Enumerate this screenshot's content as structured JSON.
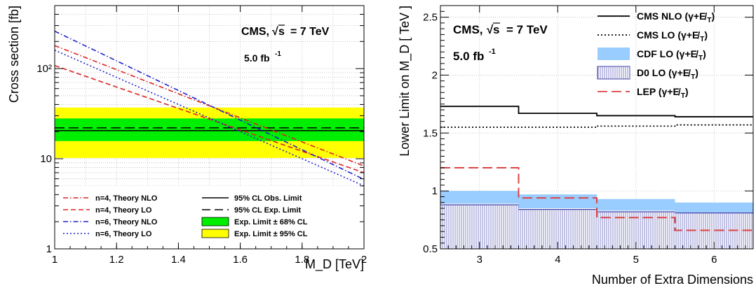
{
  "chart_data": [
    {
      "type": "line",
      "title": "",
      "xlabel": "M_D [TeV]",
      "ylabel": "Cross section [fb]",
      "xlim": [
        1.0,
        2.0
      ],
      "ylim": [
        1,
        500
      ],
      "yscale": "log",
      "x_ticks": [
        1,
        1.2,
        1.4,
        1.6,
        1.8,
        2
      ],
      "x_tick_labels": [
        "1",
        "1.2",
        "1.4",
        "1.6",
        "1.8",
        "2"
      ],
      "y_ticks": [
        1,
        10,
        100
      ],
      "y_tick_labels": [
        "1",
        "10",
        "10²"
      ],
      "grid": true,
      "legend_position": "bottom",
      "annotations": [
        "CMS, √s = 7 TeV",
        "5.0 fb⁻¹"
      ],
      "annotation_parts": {
        "cms": "CMS,",
        "sqrt": "√",
        "s": "s",
        "energy": "= 7 TeV",
        "lumi": "5.0 fb",
        "lumi_exp": "-1"
      },
      "bands": [
        {
          "name": "Exp. Limit ± 95% CL",
          "color": "#ffff00",
          "low": 10.2,
          "high": 37
        },
        {
          "name": "Exp. Limit ± 68% CL",
          "color": "#00ee00",
          "low": 15.7,
          "high": 28
        }
      ],
      "hlines": [
        {
          "name": "95% CL Obs. Limit",
          "value": 20.5,
          "style": "solid",
          "color": "#000000"
        },
        {
          "name": "95% CL Exp. Limit",
          "value": 22.0,
          "style": "dashed",
          "color": "#000000"
        }
      ],
      "series": [
        {
          "name": "n=4, Theory NLO",
          "color": "#dd2222",
          "style": "dashdot",
          "x": [
            1.0,
            2.0
          ],
          "y": [
            180,
            8.3
          ]
        },
        {
          "name": "n=4, Theory LO",
          "color": "#dd2222",
          "style": "dashed",
          "x": [
            1.0,
            2.0
          ],
          "y": [
            108,
            7.0
          ]
        },
        {
          "name": "n=6, Theory NLO",
          "color": "#2222cc",
          "style": "dashdot",
          "x": [
            1.0,
            2.0
          ],
          "y": [
            260,
            5.9
          ]
        },
        {
          "name": "n=6, Theory LO",
          "color": "#2222cc",
          "style": "dotted",
          "x": [
            1.0,
            2.0
          ],
          "y": [
            160,
            5.0
          ]
        }
      ],
      "legend": [
        {
          "label": "n=4, Theory NLO",
          "kind": "line",
          "color": "#dd2222",
          "style": "dashdot"
        },
        {
          "label": "n=4, Theory LO",
          "kind": "line",
          "color": "#dd2222",
          "style": "dashed"
        },
        {
          "label": "n=6, Theory NLO",
          "kind": "line",
          "color": "#2222cc",
          "style": "dashdot"
        },
        {
          "label": "n=6, Theory LO",
          "kind": "line",
          "color": "#2222cc",
          "style": "dotted"
        },
        {
          "label": "95% CL Obs. Limit",
          "kind": "line",
          "color": "#000000",
          "style": "solid"
        },
        {
          "label": "95% CL Exp. Limit",
          "kind": "line",
          "color": "#000000",
          "style": "longdash"
        },
        {
          "label": "Exp. Limit ± 68% CL",
          "kind": "box",
          "color": "#00ee00"
        },
        {
          "label": "Exp. Limit ± 95% CL",
          "kind": "box",
          "color": "#ffff00"
        }
      ]
    },
    {
      "type": "line",
      "title": "",
      "xlabel": "Number of Extra Dimensions",
      "ylabel": "Lower Limit on M_D [ TeV ]",
      "xlim": [
        2.5,
        6.5
      ],
      "ylim": [
        0.5,
        2.6
      ],
      "x_ticks": [
        3,
        4,
        5,
        6
      ],
      "x_tick_labels": [
        "3",
        "4",
        "5",
        "6"
      ],
      "y_ticks": [
        0.5,
        1,
        1.5,
        2,
        2.5
      ],
      "y_tick_labels": [
        "0.5",
        "1",
        "1.5",
        "2",
        "2.5"
      ],
      "grid": true,
      "legend_position": "top-right",
      "annotations": [
        "CMS, √s = 7 TeV",
        "5.0 fb⁻¹"
      ],
      "annotation_parts": {
        "cms": "CMS,",
        "sqrt": "√",
        "s": "s",
        "energy": "= 7 TeV",
        "lumi": "5.0 fb",
        "lumi_exp": "-1"
      },
      "step_series": [
        {
          "name": "CMS NLO (γ+E̸T)",
          "label_main": "CMS NLO (γ+E̸",
          "color": "#000000",
          "style": "solid",
          "edges": [
            2.5,
            3.5,
            4.5,
            5.5,
            6.5
          ],
          "values": [
            1.73,
            1.67,
            1.65,
            1.64
          ]
        },
        {
          "name": "CMS LO (γ+E̸T)",
          "label_main": "CMS LO (γ+E̸",
          "color": "#000000",
          "style": "dotted",
          "edges": [
            2.5,
            3.5,
            4.5,
            5.5,
            6.5
          ],
          "values": [
            1.55,
            1.55,
            1.56,
            1.57
          ]
        },
        {
          "name": "LEP (γ+E̸T)",
          "label_main": "LEP (γ+E̸",
          "color": "#dd4444",
          "style": "dashed",
          "edges": [
            2.5,
            3.5,
            4.5,
            5.5,
            6.5
          ],
          "values": [
            1.2,
            0.94,
            0.77,
            0.66
          ]
        }
      ],
      "band_series": [
        {
          "name": "CDF LO (γ+E̸T)",
          "label_main": "CDF LO (γ+E̸",
          "color": "#99ccff",
          "edges": [
            2.5,
            3.5,
            4.5,
            5.5,
            6.5
          ],
          "low": [
            0.89,
            0.85,
            0.83,
            0.81
          ],
          "high": [
            1.0,
            0.97,
            0.93,
            0.9
          ]
        },
        {
          "name": "D0 LO (γ+E̸T)",
          "label_main": "D0 LO (γ+E̸",
          "color": "#4444aa",
          "edges": [
            2.5,
            3.5,
            4.5,
            5.5,
            6.5
          ],
          "low": [
            0.5,
            0.5,
            0.5,
            0.5
          ],
          "high": [
            0.88,
            0.84,
            0.82,
            0.81
          ]
        }
      ],
      "legend_subscript": "T",
      "legend_close": ")"
    }
  ]
}
